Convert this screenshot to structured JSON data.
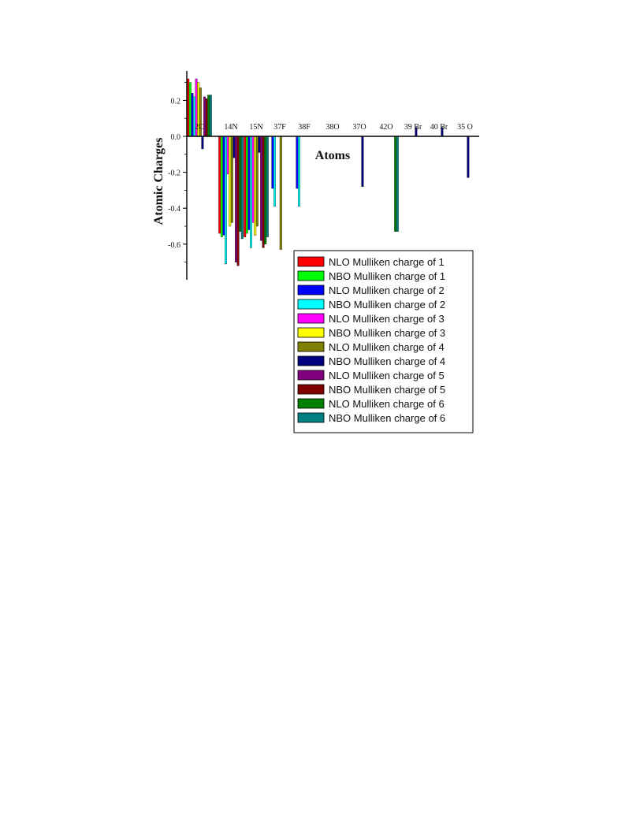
{
  "chart_data": {
    "type": "bar",
    "xlabel": "Atoms",
    "ylabel": "Atomic Charges",
    "ylim": [
      -0.8,
      0.35
    ],
    "yticks": [
      0.2,
      0.0,
      -0.2,
      -0.4,
      -0.6
    ],
    "ytick_labels": [
      "0.2",
      "0.0",
      "-0.2",
      "-0.4",
      "-0.6"
    ],
    "grid": false,
    "legend_position": "bottom-right",
    "categories": [
      "2C",
      "14N",
      "15N",
      "37F",
      "38F",
      "38O",
      "37O",
      "42O",
      "39 Br",
      "40 Br",
      "35 O"
    ],
    "series": [
      {
        "name": "NLO Mulliken charge of 1",
        "color": "#ff0000",
        "values": [
          0.32,
          -0.54,
          -0.56,
          null,
          null,
          null,
          null,
          null,
          null,
          null,
          null
        ]
      },
      {
        "name": "NBO Mulliken charge of 1",
        "color": "#00ff00",
        "values": [
          0.3,
          -0.56,
          -0.54,
          null,
          null,
          null,
          null,
          null,
          null,
          null,
          null
        ]
      },
      {
        "name": "NLO Mulliken charge of 2",
        "color": "#0000ff",
        "values": [
          0.24,
          -0.55,
          -0.52,
          -0.29,
          -0.29,
          null,
          null,
          null,
          null,
          null,
          null
        ]
      },
      {
        "name": "NBO Mulliken charge of 2",
        "color": "#00ffff",
        "values": [
          0.22,
          -0.71,
          -0.62,
          -0.39,
          -0.39,
          null,
          null,
          null,
          null,
          null,
          null
        ]
      },
      {
        "name": "NLO Mulliken charge of 3",
        "color": "#ff00ff",
        "values": [
          0.32,
          -0.21,
          -0.48,
          null,
          null,
          null,
          null,
          null,
          null,
          null,
          null
        ]
      },
      {
        "name": "NBO Mulliken charge of 3",
        "color": "#ffff00",
        "values": [
          0.3,
          -0.5,
          -0.55,
          null,
          null,
          null,
          null,
          null,
          null,
          null,
          null
        ]
      },
      {
        "name": "NLO Mulliken charge of 4",
        "color": "#808000",
        "values": [
          0.27,
          -0.48,
          -0.5,
          -0.63,
          null,
          null,
          null,
          null,
          null,
          null,
          null
        ]
      },
      {
        "name": "NBO Mulliken charge of 4",
        "color": "#000080",
        "values": [
          -0.07,
          -0.12,
          -0.09,
          null,
          null,
          null,
          -0.28,
          null,
          0.05,
          0.05,
          -0.23
        ]
      },
      {
        "name": "NLO Mulliken charge of 5",
        "color": "#800080",
        "values": [
          0.22,
          -0.7,
          -0.58,
          null,
          null,
          null,
          null,
          null,
          null,
          null,
          null
        ]
      },
      {
        "name": "NBO Mulliken charge of 5",
        "color": "#800000",
        "values": [
          0.21,
          -0.72,
          -0.62,
          null,
          null,
          null,
          null,
          null,
          null,
          null,
          null
        ]
      },
      {
        "name": "NLO Mulliken charge of 6",
        "color": "#008000",
        "values": [
          0.23,
          -0.53,
          -0.6,
          null,
          null,
          null,
          null,
          -0.53,
          null,
          null,
          null
        ]
      },
      {
        "name": "NBO Mulliken charge of 6",
        "color": "#008080",
        "values": [
          0.23,
          -0.57,
          -0.56,
          null,
          null,
          null,
          null,
          -0.53,
          null,
          null,
          null
        ]
      }
    ]
  }
}
